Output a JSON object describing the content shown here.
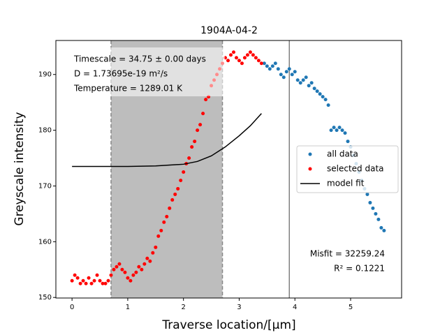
{
  "chart_data": {
    "type": "scatter",
    "title": "1904A-04-2",
    "x_label": "Traverse location/[μm]",
    "y_label": "Greyscale intensity",
    "xlim": [
      -0.29,
      5.915
    ],
    "ylim": [
      149.9,
      196.1
    ],
    "xticks": [
      0,
      1,
      2,
      3,
      4,
      5
    ],
    "yticks": [
      150,
      160,
      170,
      180,
      190
    ],
    "shaded_span": [
      0.7,
      2.7
    ],
    "shaded_color": "#bdbdbd",
    "vline": 3.9,
    "vline_color": "#808080",
    "legend": "right",
    "annotations_top": [
      "Timescale = 34.75 ± 0.00 days",
      "D = 1.73695e-19 m²/s",
      "Temperature = 1289.01 K"
    ],
    "annotations_bottom": [
      "Misfit = 32259.24",
      "R² = 0.1221"
    ],
    "series": [
      {
        "name": "all data",
        "color": "#1f77b4",
        "kind": "points",
        "x": [
          3.45,
          3.5,
          3.55,
          3.6,
          3.65,
          3.7,
          3.75,
          3.8,
          3.85,
          3.9,
          3.95,
          4.0,
          4.05,
          4.1,
          4.15,
          4.2,
          4.25,
          4.3,
          4.35,
          4.4,
          4.45,
          4.5,
          4.55,
          4.6,
          4.65,
          4.7,
          4.75,
          4.8,
          4.85,
          4.9,
          4.95,
          5.0,
          5.05,
          5.1,
          5.15,
          5.2,
          5.25,
          5.3,
          5.35,
          5.4,
          5.45,
          5.5,
          5.55,
          5.6
        ],
        "values": [
          192,
          191.5,
          191,
          191.5,
          192,
          191,
          190,
          189.5,
          190.5,
          191,
          190,
          190.5,
          189,
          188.5,
          189,
          189.5,
          188,
          188.5,
          187.5,
          187,
          186.5,
          186,
          185.5,
          184.5,
          180,
          180.5,
          180,
          180.5,
          180,
          179.5,
          178,
          177,
          175.5,
          174,
          172.5,
          171,
          169.5,
          168.5,
          167,
          166,
          165,
          164,
          162.5,
          162
        ]
      },
      {
        "name": "selected data",
        "color": "#ff0000",
        "kind": "points",
        "x": [
          0,
          0.05,
          0.1,
          0.15,
          0.2,
          0.25,
          0.3,
          0.35,
          0.4,
          0.45,
          0.5,
          0.55,
          0.6,
          0.65,
          0.7,
          0.75,
          0.8,
          0.85,
          0.9,
          0.95,
          1.0,
          1.05,
          1.1,
          1.15,
          1.2,
          1.25,
          1.3,
          1.35,
          1.4,
          1.45,
          1.5,
          1.55,
          1.6,
          1.65,
          1.7,
          1.75,
          1.8,
          1.85,
          1.9,
          1.95,
          2.0,
          2.05,
          2.1,
          2.15,
          2.2,
          2.25,
          2.3,
          2.35,
          2.4,
          2.45,
          2.5,
          2.55,
          2.6,
          2.65,
          2.7,
          2.75,
          2.8,
          2.85,
          2.9,
          2.95,
          3.0,
          3.05,
          3.1,
          3.15,
          3.2,
          3.25,
          3.3,
          3.35,
          3.4
        ],
        "values": [
          153,
          154,
          153.5,
          152.5,
          153,
          152.5,
          153.5,
          152.5,
          153,
          154,
          153,
          152.5,
          152.5,
          153,
          154,
          155,
          155.5,
          156,
          155,
          154.5,
          153.5,
          153,
          154,
          154.5,
          155.5,
          155,
          156,
          157,
          156.5,
          158,
          159,
          161,
          162,
          163.5,
          164.5,
          166,
          167.5,
          168.5,
          169.5,
          171,
          172.5,
          174,
          175,
          177,
          178,
          180,
          181,
          183,
          185.5,
          186,
          188,
          189,
          190,
          191,
          192,
          193,
          192.5,
          193.5,
          194,
          193,
          192.5,
          192,
          193,
          193.5,
          194,
          193.5,
          193,
          192.5,
          192
        ]
      },
      {
        "name": "model fit",
        "color": "#000000",
        "kind": "line",
        "x": [
          0,
          0.5,
          1,
          1.5,
          2,
          2.25,
          2.5,
          2.75,
          3,
          3.2,
          3.4
        ],
        "values": [
          173.5,
          173.5,
          173.5,
          173.6,
          173.9,
          174.4,
          175.4,
          177,
          179,
          180.8,
          183
        ]
      }
    ]
  }
}
